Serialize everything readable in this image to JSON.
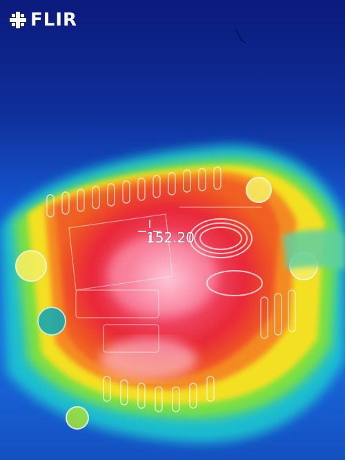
{
  "brand": {
    "name": "FLIR",
    "logo_icon": "flir-logo-icon"
  },
  "measurement": {
    "spot_temperature": "152.20",
    "spot_icon": "crosshair-icon"
  },
  "palette": {
    "cold": "#0b1a7c",
    "cool": "#1a64e0",
    "mid": "#18c8c0",
    "warm": "#f0e020",
    "hot": "#e02030",
    "hottest": "#ffe8f0"
  }
}
